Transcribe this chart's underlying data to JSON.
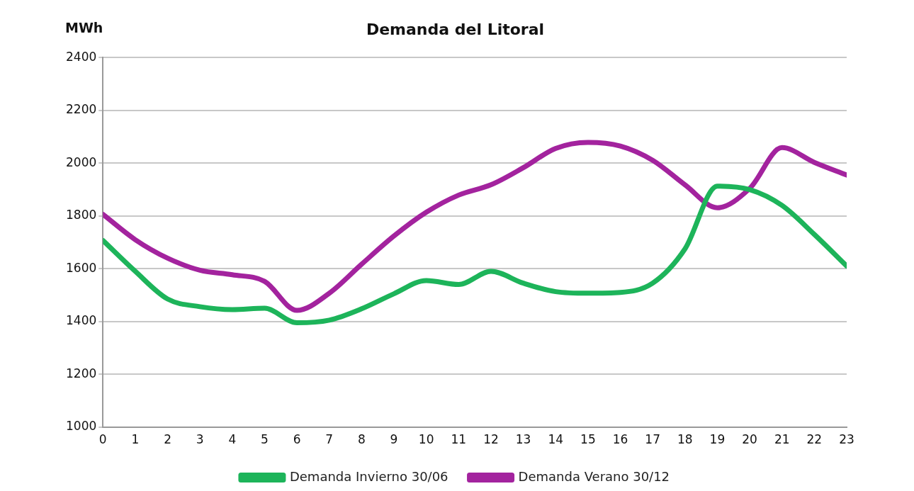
{
  "chart_data": {
    "type": "line",
    "title": "Demanda del Litoral",
    "ylabel": "MWh",
    "x": [
      0,
      1,
      2,
      3,
      4,
      5,
      6,
      7,
      8,
      9,
      10,
      11,
      12,
      13,
      14,
      15,
      16,
      17,
      18,
      19,
      20,
      21,
      22,
      23
    ],
    "xlim": [
      0,
      23
    ],
    "xticks": [
      0,
      1,
      2,
      3,
      4,
      5,
      6,
      7,
      8,
      9,
      10,
      11,
      12,
      13,
      14,
      15,
      16,
      17,
      18,
      19,
      20,
      21,
      22,
      23
    ],
    "series": [
      {
        "name": "Demanda Invierno 30/06",
        "color": "#1db45a",
        "values": [
          1707,
          1590,
          1485,
          1456,
          1445,
          1450,
          1395,
          1405,
          1448,
          1505,
          1555,
          1540,
          1590,
          1545,
          1513,
          1507,
          1510,
          1545,
          1675,
          1913,
          1900,
          1840,
          1730,
          1610
        ]
      },
      {
        "name": "Demanda Verano 30/12",
        "color": "#a3239e",
        "values": [
          1806,
          1710,
          1640,
          1594,
          1577,
          1552,
          1442,
          1507,
          1617,
          1724,
          1814,
          1879,
          1918,
          1983,
          2056,
          2079,
          2065,
          2011,
          1918,
          1831,
          1904,
          2059,
          2003,
          1955
        ]
      }
    ],
    "ylim": [
      1000,
      2400
    ],
    "yticks": [
      1000,
      1200,
      1400,
      1600,
      1800,
      2000,
      2200,
      2400
    ],
    "grid": "y",
    "legend": "bottom",
    "marker": "none",
    "line_style": "solid"
  }
}
